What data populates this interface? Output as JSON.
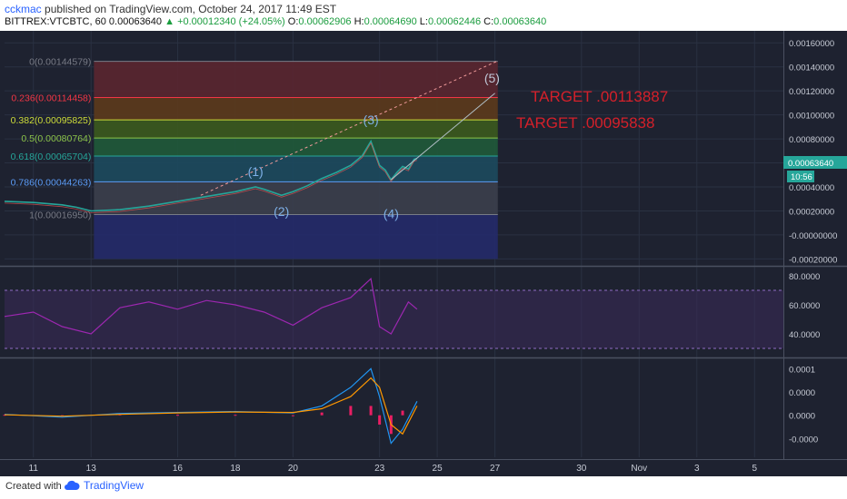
{
  "header": {
    "author": "cckmac",
    "publish_text": "published on TradingView.com, October 24, 2017 11:49 EST",
    "symbol": "BITTREX:VTCBTC, 60",
    "last": "0.00063640",
    "change": "+0.00012340 (+24.05%)",
    "open_label": "O:",
    "open": "0.00062906",
    "high_label": "H:",
    "high": "0.00064690",
    "low_label": "L:",
    "low": "0.00062446",
    "close_label": "C:",
    "close": "0.00063640"
  },
  "footer": {
    "created_with": "Created with",
    "brand": "TradingView"
  },
  "annotations": {
    "target1": "TARGET .00113887",
    "target2": "TARGET .00095838",
    "waves": [
      "(1)",
      "(2)",
      "(3)",
      "(4)",
      "(5)"
    ]
  },
  "price_badge": {
    "value": "0.00063640",
    "countdown": "10:56"
  },
  "chart_data": [
    {
      "type": "line",
      "panel": "price",
      "price_axis_ticks": [
        "0.00160000",
        "0.00140000",
        "0.00120000",
        "0.00100000",
        "0.00080000",
        "0.00060000",
        "0.00040000",
        "0.00020000",
        "-0.00000000",
        "-0.00020000"
      ],
      "price_axis_values": [
        0.0016,
        0.0014,
        0.0012,
        0.001,
        0.0008,
        0.0006,
        0.0004,
        0.0002,
        0,
        -0.0002
      ],
      "x_ticks": [
        "11",
        "13",
        "16",
        "18",
        "20",
        "23",
        "25",
        "27",
        "30",
        "Nov",
        "3",
        "5"
      ],
      "x_values": [
        11,
        13,
        16,
        18,
        20,
        23,
        25,
        27,
        30,
        32,
        34,
        36
      ],
      "fib_levels": [
        {
          "label": "0(0.00144579)",
          "value": 0.00144579,
          "color": "#787b86",
          "fill": "#5a2630"
        },
        {
          "label": "0.236(0.00114458)",
          "value": 0.00114458,
          "color": "#f23645",
          "fill": "#5c3a1c"
        },
        {
          "label": "0.382(0.00095825)",
          "value": 0.00095825,
          "color": "#cddc39",
          "fill": "#3b5a1e"
        },
        {
          "label": "0.5(0.00080764)",
          "value": 0.00080764,
          "color": "#8bc34a",
          "fill": "#1f5a3a"
        },
        {
          "label": "0.618(0.00065704)",
          "value": 0.00065704,
          "color": "#26a69a",
          "fill": "#1c4a5e"
        },
        {
          "label": "0.786(0.00044263)",
          "value": 0.00044263,
          "color": "#5b9cf6",
          "fill": "#3b3f4c"
        },
        {
          "label": "1(0.00016950)",
          "value": 0.0001695,
          "color": "#787b86",
          "fill": "#232a6a"
        }
      ],
      "fib_fill_bottom": -0.0002,
      "wave_points": [
        {
          "label": "(1)",
          "x": 18.7,
          "y": 0.00049
        },
        {
          "label": "(2)",
          "x": 19.6,
          "y": 0.00016
        },
        {
          "label": "(3)",
          "x": 22.7,
          "y": 0.00092
        },
        {
          "label": "(4)",
          "x": 23.4,
          "y": 0.00014
        },
        {
          "label": "(5)",
          "x": 26.9,
          "y": 0.00127
        }
      ],
      "price_series": {
        "x": [
          10,
          11,
          12,
          12.5,
          13,
          14,
          15,
          16,
          17,
          18,
          18.7,
          19,
          19.6,
          20,
          20.5,
          21,
          21.5,
          22,
          22.4,
          22.7,
          23,
          23.2,
          23.4,
          23.6,
          23.8,
          24,
          24.2,
          24.3
        ],
        "y": [
          0.00028,
          0.00027,
          0.00025,
          0.00023,
          0.0002,
          0.00021,
          0.00024,
          0.00028,
          0.00032,
          0.00036,
          0.0004,
          0.00038,
          0.00033,
          0.00036,
          0.00041,
          0.00047,
          0.00052,
          0.00058,
          0.00066,
          0.00078,
          0.00058,
          0.00054,
          0.00046,
          0.00052,
          0.00057,
          0.00055,
          0.00063,
          0.0006364
        ]
      }
    },
    {
      "type": "line",
      "panel": "rsi",
      "axis_ticks": [
        "80.0000",
        "60.0000",
        "40.0000"
      ],
      "axis_values": [
        80,
        60,
        40
      ],
      "band": [
        30,
        70
      ],
      "series": {
        "x": [
          10,
          11,
          12,
          13,
          14,
          15,
          16,
          17,
          18,
          19,
          20,
          21,
          22,
          22.7,
          23,
          23.4,
          24,
          24.3
        ],
        "y": [
          52,
          55,
          45,
          40,
          58,
          62,
          57,
          63,
          60,
          55,
          46,
          58,
          65,
          78,
          45,
          40,
          62,
          57
        ]
      }
    },
    {
      "type": "bar",
      "panel": "macd",
      "axis_ticks": [
        "0.0001",
        "0.0000",
        "0.0000",
        "-0.0000"
      ],
      "axis_values": [
        0.0001,
        5e-05,
        0,
        -5e-05
      ],
      "macd": {
        "x": [
          10,
          12,
          14,
          16,
          18,
          20,
          21,
          22,
          22.7,
          23,
          23.4,
          23.8,
          24.3
        ],
        "y": [
          2e-06,
          -4e-06,
          4e-06,
          6e-06,
          8e-06,
          5e-06,
          2e-05,
          6e-05,
          0.0001,
          4e-05,
          -6e-05,
          -3e-05,
          3e-05
        ]
      },
      "signal": {
        "x": [
          10,
          12,
          14,
          16,
          18,
          20,
          21,
          22,
          22.7,
          23,
          23.4,
          23.8,
          24.3
        ],
        "y": [
          1e-06,
          -2e-06,
          2e-06,
          5e-06,
          7e-06,
          6e-06,
          1.4e-05,
          4e-05,
          8e-05,
          6e-05,
          -2e-05,
          -4e-05,
          2e-05
        ]
      }
    }
  ],
  "colors": {
    "background": "#1e2230",
    "accent": "#2962ff",
    "target_text": "#d4202a",
    "candles_up": "#26a69a",
    "candles_down": "#ef5350",
    "rsi_line": "#9c27b0",
    "macd_line": "#2196f3",
    "signal_line": "#ff9800",
    "histogram": "#e91e63",
    "badge": "#26a69a"
  }
}
